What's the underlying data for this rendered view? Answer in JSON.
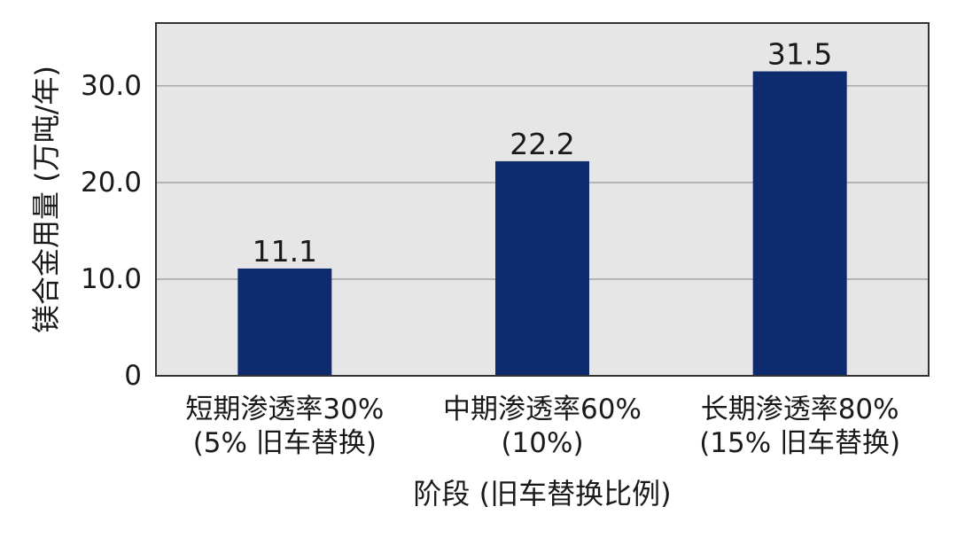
{
  "chart_data": {
    "type": "bar",
    "categories": [
      [
        "短期渗透率30%",
        "(5% 旧车替换)"
      ],
      [
        "中期渗透率60%",
        "(10%)"
      ],
      [
        "长期渗透率80%",
        "(15% 旧车替换)"
      ]
    ],
    "values": [
      11.1,
      22.2,
      31.5
    ],
    "value_labels": [
      "11.1",
      "22.2",
      "31.5"
    ],
    "xlabel": "阶段 (旧车替换比例)",
    "ylabel": "镁合金用量 (万吨/年)",
    "ylim": [
      0,
      36.5
    ],
    "yticks": [
      0,
      10,
      20,
      30
    ],
    "ytick_labels": [
      "0",
      "10.0",
      "20.0",
      "30.0"
    ],
    "grid": true,
    "colors": {
      "bar": "#0d2b6e",
      "plot_bg": "#e6e6e6",
      "grid": "#a9a9a9",
      "axis": "#333333"
    }
  }
}
